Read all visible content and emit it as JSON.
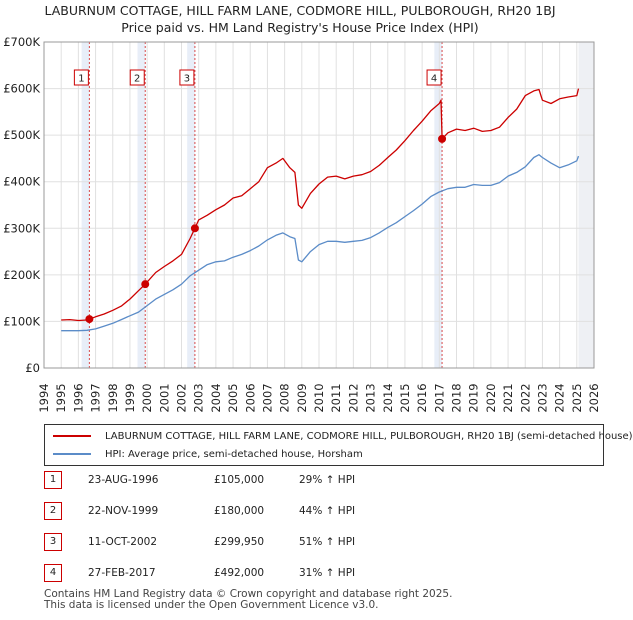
{
  "title_line1": "LABURNUM COTTAGE, HILL FARM LANE, CODMORE HILL, PULBOROUGH, RH20 1BJ",
  "title_line2": "Price paid vs. HM Land Registry's House Price Index (HPI)",
  "colors": {
    "property": "#cc0000",
    "hpi": "#5b8cc8",
    "sale_band": "#e8eef8",
    "grid": "#e0e0e0"
  },
  "legend": {
    "property_label": "LABURNUM COTTAGE, HILL FARM LANE, CODMORE HILL, PULBOROUGH, RH20 1BJ (semi-detached house)",
    "hpi_label": "HPI: Average price, semi-detached house, Horsham"
  },
  "sales": [
    {
      "num": "1",
      "date": "23-AUG-1996",
      "price": "£105,000",
      "hpi": "29% ↑ HPI"
    },
    {
      "num": "2",
      "date": "22-NOV-1999",
      "price": "£180,000",
      "hpi": "44% ↑ HPI"
    },
    {
      "num": "3",
      "date": "11-OCT-2002",
      "price": "£299,950",
      "hpi": "51% ↑ HPI"
    },
    {
      "num": "4",
      "date": "27-FEB-2017",
      "price": "£492,000",
      "hpi": "31% ↑ HPI"
    }
  ],
  "footer_line1": "Contains HM Land Registry data © Crown copyright and database right 2025.",
  "footer_line2": "This data is licensed under the Open Government Licence v3.0.",
  "chart_data": {
    "type": "line",
    "title": "Price paid vs. HM Land Registry's House Price Index (HPI)",
    "xlabel": "",
    "ylabel": "",
    "xlim": [
      1994,
      2026
    ],
    "ylim": [
      0,
      700000
    ],
    "x_ticks": [
      1994,
      1995,
      1996,
      1997,
      1998,
      1999,
      2000,
      2001,
      2002,
      2003,
      2004,
      2005,
      2006,
      2007,
      2008,
      2009,
      2010,
      2011,
      2012,
      2013,
      2014,
      2015,
      2016,
      2017,
      2018,
      2019,
      2020,
      2021,
      2022,
      2023,
      2024,
      2025,
      2026
    ],
    "y_ticks": [
      {
        "value": 0,
        "label": "£0"
      },
      {
        "value": 100000,
        "label": "£100K"
      },
      {
        "value": 200000,
        "label": "£200K"
      },
      {
        "value": 300000,
        "label": "£300K"
      },
      {
        "value": 400000,
        "label": "£400K"
      },
      {
        "value": 500000,
        "label": "£500K"
      },
      {
        "value": 600000,
        "label": "£600K"
      },
      {
        "value": 700000,
        "label": "£700K"
      }
    ],
    "grid": true,
    "sale_markers": [
      {
        "label": "1",
        "x": 1996.64,
        "y": 105000
      },
      {
        "label": "2",
        "x": 1999.89,
        "y": 180000
      },
      {
        "label": "3",
        "x": 2002.78,
        "y": 299950
      },
      {
        "label": "4",
        "x": 2017.16,
        "y": 492000
      }
    ],
    "series": [
      {
        "name": "LABURNUM COTTAGE, HILL FARM LANE, CODMORE HILL, PULBOROUGH, RH20 1BJ (semi-detached house)",
        "color": "#cc0000",
        "x": [
          1995.0,
          1995.5,
          1996.0,
          1996.5,
          1996.64,
          1997.0,
          1997.5,
          1998.0,
          1998.5,
          1999.0,
          1999.5,
          1999.89,
          2000.5,
          2001.0,
          2001.5,
          2002.0,
          2002.5,
          2002.78,
          2003.0,
          2003.5,
          2004.0,
          2004.5,
          2005.0,
          2005.5,
          2006.0,
          2006.5,
          2007.0,
          2007.5,
          2007.9,
          2008.3,
          2008.6,
          2008.8,
          2009.0,
          2009.5,
          2010.0,
          2010.5,
          2011.0,
          2011.5,
          2012.0,
          2012.5,
          2013.0,
          2013.5,
          2014.0,
          2014.5,
          2015.0,
          2015.5,
          2016.0,
          2016.5,
          2017.0,
          2017.1,
          2017.16,
          2017.5,
          2018.0,
          2018.5,
          2019.0,
          2019.5,
          2020.0,
          2020.5,
          2021.0,
          2021.5,
          2022.0,
          2022.5,
          2022.8,
          2023.0,
          2023.5,
          2024.0,
          2024.5,
          2025.0,
          2025.1
        ],
        "y": [
          103000,
          104000,
          102000,
          103000,
          105000,
          110000,
          116000,
          124000,
          133000,
          148000,
          166000,
          180000,
          205000,
          218000,
          230000,
          244000,
          278000,
          299950,
          318000,
          328000,
          340000,
          350000,
          365000,
          370000,
          385000,
          400000,
          430000,
          440000,
          450000,
          430000,
          420000,
          350000,
          343000,
          375000,
          395000,
          410000,
          412000,
          406000,
          412000,
          415000,
          422000,
          435000,
          452000,
          468000,
          488000,
          510000,
          530000,
          552000,
          568000,
          575000,
          492000,
          505000,
          513000,
          510000,
          515000,
          508000,
          510000,
          517000,
          538000,
          556000,
          585000,
          595000,
          598000,
          575000,
          568000,
          578000,
          582000,
          585000,
          600000
        ]
      },
      {
        "name": "HPI: Average price, semi-detached house, Horsham",
        "color": "#5b8cc8",
        "x": [
          1995.0,
          1995.5,
          1996.0,
          1996.5,
          1997.0,
          1997.5,
          1998.0,
          1998.5,
          1999.0,
          1999.5,
          2000.0,
          2000.5,
          2001.0,
          2001.5,
          2002.0,
          2002.5,
          2003.0,
          2003.5,
          2004.0,
          2004.5,
          2005.0,
          2005.5,
          2006.0,
          2006.5,
          2007.0,
          2007.5,
          2007.9,
          2008.3,
          2008.6,
          2008.8,
          2009.0,
          2009.5,
          2010.0,
          2010.5,
          2011.0,
          2011.5,
          2012.0,
          2012.5,
          2013.0,
          2013.5,
          2014.0,
          2014.5,
          2015.0,
          2015.5,
          2016.0,
          2016.5,
          2017.0,
          2017.5,
          2018.0,
          2018.5,
          2019.0,
          2019.5,
          2020.0,
          2020.5,
          2021.0,
          2021.5,
          2022.0,
          2022.5,
          2022.8,
          2023.0,
          2023.5,
          2024.0,
          2024.5,
          2025.0,
          2025.1
        ],
        "y": [
          80000,
          80000,
          80000,
          81000,
          84000,
          90000,
          96000,
          104000,
          112000,
          120000,
          134000,
          148000,
          158000,
          168000,
          180000,
          198000,
          210000,
          222000,
          228000,
          230000,
          238000,
          244000,
          252000,
          262000,
          275000,
          285000,
          290000,
          282000,
          278000,
          232000,
          228000,
          250000,
          265000,
          272000,
          272000,
          270000,
          272000,
          274000,
          280000,
          290000,
          302000,
          312000,
          325000,
          338000,
          352000,
          368000,
          378000,
          385000,
          388000,
          388000,
          394000,
          392000,
          392000,
          398000,
          412000,
          420000,
          432000,
          452000,
          458000,
          452000,
          440000,
          430000,
          436000,
          445000,
          455000
        ]
      }
    ]
  }
}
